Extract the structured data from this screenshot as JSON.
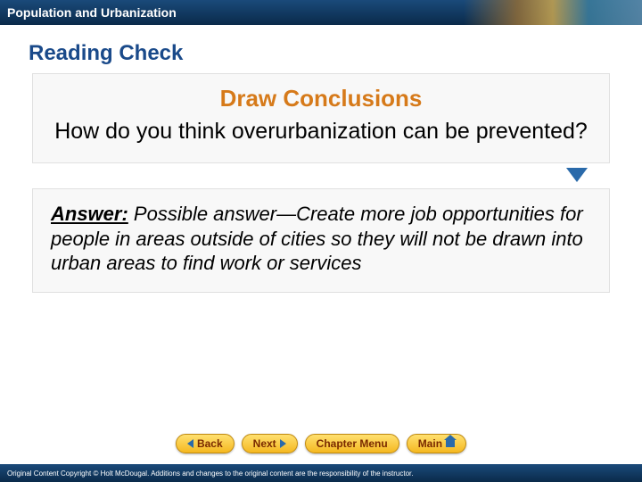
{
  "header": {
    "chapter_title": "Population and Urbanization"
  },
  "content": {
    "section_title": "Reading Check",
    "prompt_title": "Draw Conclusions",
    "question": "How do you think overurbanization can be prevented?",
    "answer_label": "Answer:",
    "answer_text": " Possible answer—Create more job opportunities for people in areas outside of cities so they will not be drawn into urban areas to find work or services"
  },
  "nav": {
    "back": "Back",
    "next": "Next",
    "chapter_menu": "Chapter Menu",
    "main": "Main"
  },
  "footer": {
    "copyright": "Original Content Copyright © Holt McDougal. Additions and changes to the original content are the responsibility of the instructor."
  },
  "colors": {
    "header_bg": "#0a2a4a",
    "section_title": "#1a4a8a",
    "prompt_title": "#d67a1a",
    "nav_btn_bg": "#f5b820",
    "nav_btn_text": "#7a2a00",
    "triangle": "#2a6aaa"
  }
}
